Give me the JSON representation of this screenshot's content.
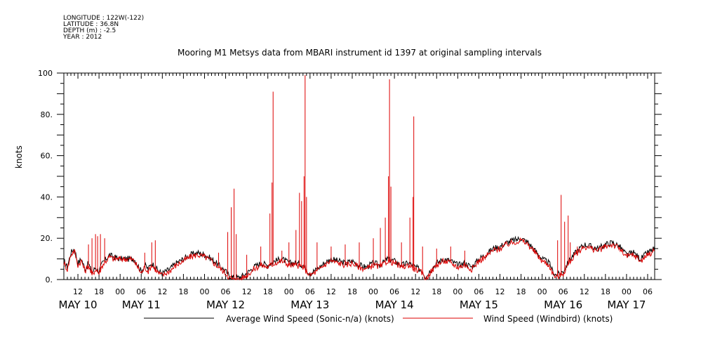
{
  "header": {
    "longitude": "LONGITUDE : 122W(-122)",
    "latitude": "LATITUDE : 36.8N",
    "depth": "DEPTH (m) : -2.5",
    "year": "YEAR : 2012"
  },
  "chart_data": {
    "type": "line",
    "title": "Mooring M1 Metsys data from MBARI instrument id 1397 at original sampling intervals",
    "ylabel": "knots",
    "ylim": [
      0,
      100
    ],
    "yticks": [
      0,
      20,
      40,
      60,
      80,
      100
    ],
    "ytick_labels": [
      "0.",
      "20.",
      "40.",
      "60.",
      "80.",
      "100"
    ],
    "xlim_hours": [
      8,
      176
    ],
    "hour_ticks": [
      12,
      18,
      24,
      30,
      36,
      42,
      48,
      54,
      60,
      66,
      72,
      78,
      84,
      90,
      96,
      102,
      108,
      114,
      120,
      126,
      132,
      138,
      144,
      150,
      156,
      162,
      168,
      174
    ],
    "hour_tick_labels": [
      "12",
      "18",
      "00",
      "06",
      "12",
      "18",
      "00",
      "06",
      "12",
      "18",
      "00",
      "06",
      "12",
      "18",
      "00",
      "06",
      "12",
      "18",
      "00",
      "06",
      "12",
      "18",
      "00",
      "06",
      "12",
      "18",
      "00",
      "06"
    ],
    "day_labels": [
      {
        "hour": 12,
        "label": "MAY 10"
      },
      {
        "hour": 30,
        "label": "MAY 11"
      },
      {
        "hour": 54,
        "label": "MAY 12"
      },
      {
        "hour": 78,
        "label": "MAY 13"
      },
      {
        "hour": 102,
        "label": "MAY 14"
      },
      {
        "hour": 126,
        "label": "MAY 15"
      },
      {
        "hour": 150,
        "label": "MAY 16"
      },
      {
        "hour": 168,
        "label": "MAY 17"
      }
    ],
    "series": [
      {
        "name": "Average Wind Speed (Sonic-n/a) (knots)",
        "color": "#000000",
        "baseline": [
          [
            8,
            9
          ],
          [
            9,
            6
          ],
          [
            10,
            13
          ],
          [
            11,
            15
          ],
          [
            12,
            8
          ],
          [
            13,
            10
          ],
          [
            14,
            5
          ],
          [
            15,
            8
          ],
          [
            16,
            3
          ],
          [
            17,
            6
          ],
          [
            18,
            4
          ],
          [
            19,
            8
          ],
          [
            20,
            10
          ],
          [
            21,
            12
          ],
          [
            22,
            11
          ],
          [
            24,
            10
          ],
          [
            27,
            10
          ],
          [
            28,
            10
          ],
          [
            30,
            4
          ],
          [
            31,
            7
          ],
          [
            32,
            5
          ],
          [
            33,
            8
          ],
          [
            34,
            6
          ],
          [
            35,
            4
          ],
          [
            36,
            3
          ],
          [
            38,
            5
          ],
          [
            40,
            8
          ],
          [
            42,
            10
          ],
          [
            44,
            12
          ],
          [
            46,
            13
          ],
          [
            48,
            12
          ],
          [
            50,
            10
          ],
          [
            52,
            7
          ],
          [
            54,
            4
          ],
          [
            55,
            2
          ],
          [
            56,
            1
          ],
          [
            58,
            1
          ],
          [
            60,
            3
          ],
          [
            62,
            6
          ],
          [
            64,
            8
          ],
          [
            66,
            7
          ],
          [
            68,
            9
          ],
          [
            70,
            10
          ],
          [
            72,
            8
          ],
          [
            74,
            8
          ],
          [
            76,
            7
          ],
          [
            77,
            5
          ],
          [
            78,
            3
          ],
          [
            80,
            5
          ],
          [
            82,
            8
          ],
          [
            84,
            10
          ],
          [
            86,
            9
          ],
          [
            88,
            8
          ],
          [
            90,
            9
          ],
          [
            92,
            7
          ],
          [
            94,
            6
          ],
          [
            96,
            8
          ],
          [
            98,
            7
          ],
          [
            100,
            10
          ],
          [
            102,
            9
          ],
          [
            104,
            7
          ],
          [
            106,
            8
          ],
          [
            108,
            6
          ],
          [
            110,
            4
          ],
          [
            111,
            1
          ],
          [
            112,
            4
          ],
          [
            114,
            8
          ],
          [
            116,
            10
          ],
          [
            118,
            9
          ],
          [
            120,
            7
          ],
          [
            122,
            8
          ],
          [
            124,
            6
          ],
          [
            126,
            10
          ],
          [
            128,
            12
          ],
          [
            130,
            15
          ],
          [
            132,
            16
          ],
          [
            134,
            18
          ],
          [
            136,
            19
          ],
          [
            138,
            20
          ],
          [
            140,
            18
          ],
          [
            142,
            14
          ],
          [
            144,
            10
          ],
          [
            146,
            8
          ],
          [
            147,
            4
          ],
          [
            148,
            2
          ],
          [
            150,
            4
          ],
          [
            152,
            10
          ],
          [
            154,
            14
          ],
          [
            156,
            17
          ],
          [
            158,
            16
          ],
          [
            160,
            15
          ],
          [
            162,
            17
          ],
          [
            164,
            18
          ],
          [
            166,
            16
          ],
          [
            168,
            12
          ],
          [
            170,
            13
          ],
          [
            172,
            10
          ],
          [
            174,
            13
          ],
          [
            176,
            15
          ]
        ],
        "spikes": []
      },
      {
        "name": "Wind Speed (Windbird) (knots)",
        "color": "#dd0000",
        "baseline": [
          [
            8,
            8
          ],
          [
            9,
            5
          ],
          [
            10,
            12
          ],
          [
            11,
            14
          ],
          [
            12,
            7
          ],
          [
            13,
            9
          ],
          [
            14,
            4
          ],
          [
            15,
            7
          ],
          [
            16,
            2
          ],
          [
            17,
            5
          ],
          [
            18,
            3
          ],
          [
            19,
            7
          ],
          [
            20,
            9
          ],
          [
            21,
            11
          ],
          [
            22,
            10
          ],
          [
            24,
            10
          ],
          [
            27,
            10
          ],
          [
            28,
            9
          ],
          [
            30,
            3
          ],
          [
            31,
            6
          ],
          [
            32,
            4
          ],
          [
            33,
            7
          ],
          [
            34,
            5
          ],
          [
            35,
            3
          ],
          [
            36,
            2
          ],
          [
            38,
            4
          ],
          [
            40,
            7
          ],
          [
            42,
            9
          ],
          [
            44,
            11
          ],
          [
            46,
            12
          ],
          [
            48,
            11
          ],
          [
            50,
            9
          ],
          [
            52,
            6
          ],
          [
            54,
            3
          ],
          [
            55,
            1
          ],
          [
            56,
            0
          ],
          [
            58,
            0
          ],
          [
            60,
            2
          ],
          [
            62,
            5
          ],
          [
            64,
            7
          ],
          [
            66,
            6
          ],
          [
            68,
            8
          ],
          [
            70,
            9
          ],
          [
            72,
            7
          ],
          [
            74,
            7
          ],
          [
            76,
            6
          ],
          [
            77,
            4
          ],
          [
            78,
            2
          ],
          [
            80,
            4
          ],
          [
            82,
            7
          ],
          [
            84,
            9
          ],
          [
            86,
            8
          ],
          [
            88,
            7
          ],
          [
            90,
            8
          ],
          [
            92,
            6
          ],
          [
            94,
            5
          ],
          [
            96,
            7
          ],
          [
            98,
            6
          ],
          [
            100,
            9
          ],
          [
            102,
            8
          ],
          [
            104,
            6
          ],
          [
            106,
            7
          ],
          [
            108,
            5
          ],
          [
            110,
            3
          ],
          [
            111,
            0
          ],
          [
            112,
            3
          ],
          [
            114,
            7
          ],
          [
            116,
            9
          ],
          [
            118,
            8
          ],
          [
            120,
            6
          ],
          [
            122,
            7
          ],
          [
            124,
            5
          ],
          [
            126,
            9
          ],
          [
            128,
            11
          ],
          [
            130,
            14
          ],
          [
            132,
            15
          ],
          [
            134,
            17
          ],
          [
            136,
            18
          ],
          [
            138,
            19
          ],
          [
            140,
            17
          ],
          [
            142,
            13
          ],
          [
            144,
            9
          ],
          [
            146,
            7
          ],
          [
            147,
            3
          ],
          [
            148,
            1
          ],
          [
            150,
            3
          ],
          [
            152,
            9
          ],
          [
            154,
            13
          ],
          [
            156,
            16
          ],
          [
            158,
            15
          ],
          [
            160,
            14
          ],
          [
            162,
            16
          ],
          [
            164,
            17
          ],
          [
            166,
            15
          ],
          [
            168,
            11
          ],
          [
            170,
            12
          ],
          [
            172,
            9
          ],
          [
            174,
            12
          ],
          [
            176,
            14
          ]
        ],
        "spikes": [
          [
            15,
            17
          ],
          [
            16,
            20
          ],
          [
            17,
            22
          ],
          [
            17.6,
            21
          ],
          [
            18.4,
            22
          ],
          [
            19.6,
            20
          ],
          [
            31,
            13
          ],
          [
            33,
            18
          ],
          [
            34,
            19
          ],
          [
            52,
            13
          ],
          [
            54.6,
            23
          ],
          [
            55.6,
            35
          ],
          [
            56.4,
            44
          ],
          [
            57,
            22
          ],
          [
            60,
            12
          ],
          [
            64,
            16
          ],
          [
            66.6,
            32
          ],
          [
            67.2,
            47
          ],
          [
            67.5,
            91
          ],
          [
            70,
            14
          ],
          [
            72,
            18
          ],
          [
            74,
            24
          ],
          [
            75,
            42
          ],
          [
            75.6,
            38
          ],
          [
            76.3,
            50
          ],
          [
            76.6,
            99
          ],
          [
            77,
            40
          ],
          [
            80,
            18
          ],
          [
            84,
            16
          ],
          [
            88,
            17
          ],
          [
            92,
            18
          ],
          [
            96,
            20
          ],
          [
            98,
            25
          ],
          [
            99.4,
            30
          ],
          [
            100.3,
            50
          ],
          [
            100.6,
            97
          ],
          [
            101,
            45
          ],
          [
            104,
            18
          ],
          [
            106.4,
            30
          ],
          [
            107.3,
            40
          ],
          [
            107.5,
            79
          ],
          [
            110,
            16
          ],
          [
            114,
            15
          ],
          [
            118,
            16
          ],
          [
            122,
            14
          ],
          [
            148.4,
            19
          ],
          [
            149.4,
            41
          ],
          [
            150.4,
            28
          ],
          [
            151.4,
            31
          ],
          [
            152,
            18
          ],
          [
            154,
            16
          ]
        ]
      }
    ]
  },
  "legend": {
    "items": [
      {
        "label": "Average Wind Speed (Sonic-n/a) (knots)",
        "color": "#000000"
      },
      {
        "label": "Wind Speed (Windbird) (knots)",
        "color": "#dd0000"
      }
    ]
  }
}
